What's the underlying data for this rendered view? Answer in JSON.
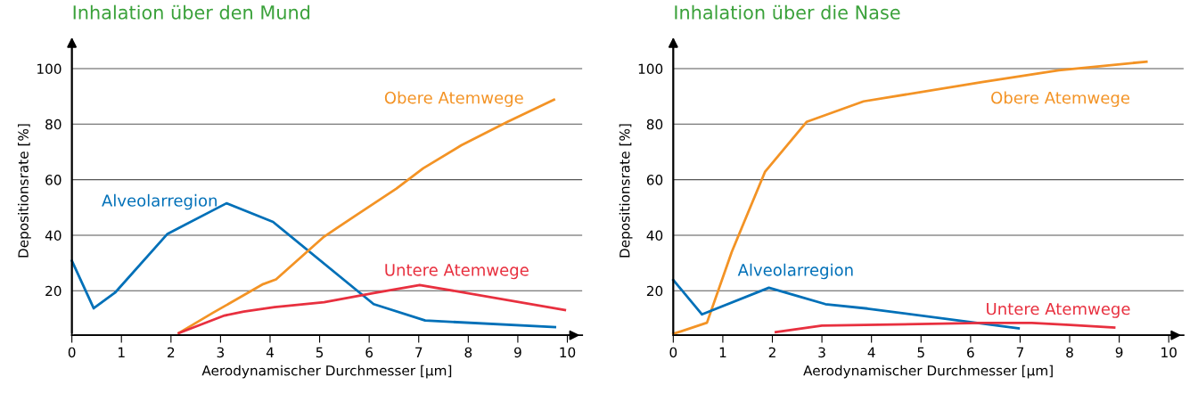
{
  "chart_data": [
    {
      "type": "line",
      "title": "Inhalation über den Mund",
      "xlabel": "Aerodynamischer Durchmesser [µm]",
      "ylabel": "Depositionsrate [%]",
      "xlim": [
        0,
        10.3
      ],
      "ylim": [
        4,
        108
      ],
      "xticks": [
        0,
        1,
        2,
        3,
        4,
        5,
        6,
        7,
        8,
        9,
        10
      ],
      "yticks": [
        20,
        40,
        60,
        80,
        100
      ],
      "grid": "y",
      "legend": false,
      "marker": "none",
      "line_style": "solid",
      "series": [
        {
          "name": "Alveolarregion",
          "color": "#0070b8",
          "x": [
            0,
            0.44,
            0.87,
            1.93,
            3.12,
            4.06,
            6.09,
            7.13,
            9.75
          ],
          "values": [
            30.8,
            13.7,
            19.3,
            40.5,
            51.5,
            44.8,
            15.2,
            9.3,
            6.9
          ]
        },
        {
          "name": "Obere Atemwege",
          "color": "#f39325",
          "x": [
            2.16,
            2.85,
            3.86,
            4.12,
            5.09,
            5.7,
            6.55,
            7.09,
            7.86,
            8.79,
            9.73
          ],
          "values": [
            4.8,
            12.1,
            22.4,
            24.1,
            39.5,
            46.8,
            56.8,
            64.1,
            72.4,
            80.8,
            88.8
          ]
        },
        {
          "name": "Untere Atemwege",
          "color": "#e8303f",
          "x": [
            2.16,
            3.08,
            3.47,
            4.09,
            5.09,
            6.09,
            7.02,
            9.95
          ],
          "values": [
            4.8,
            11.1,
            12.5,
            14.1,
            15.9,
            19.2,
            22.1,
            13.1
          ]
        }
      ]
    },
    {
      "type": "line",
      "title": "Inhalation über die Nase",
      "xlabel": "Aerodynamischer Durchmesser [µm]",
      "ylabel": "Depositionsrate [%]",
      "xlim": [
        0,
        10.3
      ],
      "ylim": [
        4,
        108
      ],
      "xticks": [
        0,
        1,
        2,
        3,
        4,
        5,
        6,
        7,
        8,
        9,
        10
      ],
      "yticks": [
        20,
        40,
        60,
        80,
        100
      ],
      "grid": "y",
      "legend": false,
      "marker": "none",
      "line_style": "solid",
      "series": [
        {
          "name": "Obere Atemwege",
          "color": "#f39325",
          "x": [
            0,
            0.68,
            1.18,
            1.85,
            2.69,
            3.84,
            6.23,
            7.78,
            9.55
          ],
          "values": [
            4.5,
            8.5,
            34,
            62.8,
            80.8,
            88.2,
            95.1,
            99.4,
            102.5
          ]
        },
        {
          "name": "Alveolarregion",
          "color": "#0070b8",
          "x": [
            0,
            0.58,
            1.93,
            2.55,
            3.07,
            3.92,
            6.97
          ],
          "values": [
            23.9,
            11.5,
            21.1,
            17.9,
            15.2,
            13.6,
            6.5
          ]
        },
        {
          "name": "Untere Atemwege",
          "color": "#e8303f",
          "x": [
            2.07,
            3.0,
            6.23,
            7.24,
            8.01,
            8.9
          ],
          "values": [
            5.1,
            7.5,
            8.4,
            8.4,
            7.7,
            6.8
          ]
        }
      ]
    }
  ]
}
